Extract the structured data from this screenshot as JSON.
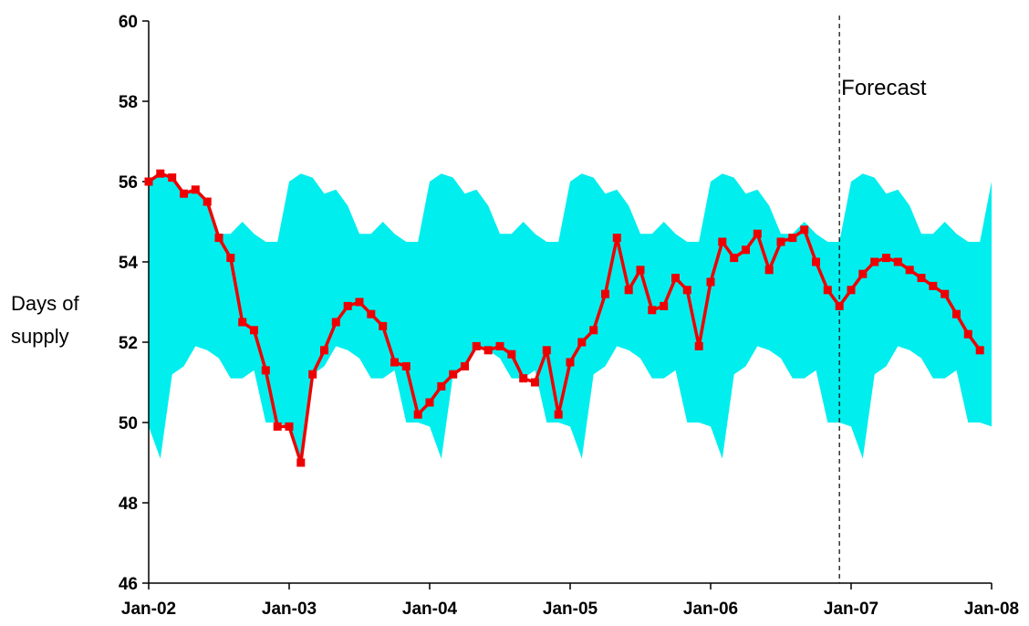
{
  "chart_data": {
    "type": "line",
    "ylabel_lines": [
      "Days of",
      "supply"
    ],
    "annotation": "Forecast",
    "forecast_x": "2006-12",
    "ylim": [
      46,
      60
    ],
    "yticks": [
      46,
      48,
      50,
      52,
      54,
      56,
      58,
      60
    ],
    "xlim": [
      "2002-01",
      "2008-01"
    ],
    "xticks": [
      {
        "x": "2002-01",
        "label": "Jan-02"
      },
      {
        "x": "2003-01",
        "label": "Jan-03"
      },
      {
        "x": "2004-01",
        "label": "Jan-04"
      },
      {
        "x": "2005-01",
        "label": "Jan-05"
      },
      {
        "x": "2006-01",
        "label": "Jan-06"
      },
      {
        "x": "2007-01",
        "label": "Jan-07"
      },
      {
        "x": "2008-01",
        "label": "Jan-08"
      }
    ],
    "band": {
      "color": "#00EEEE",
      "month_upper": [
        56.0,
        56.2,
        56.1,
        55.7,
        55.8,
        55.4,
        54.7,
        54.7,
        55.0,
        54.7,
        54.5,
        54.5
      ],
      "month_lower": [
        49.9,
        49.1,
        51.2,
        51.4,
        51.9,
        51.8,
        51.6,
        51.1,
        51.1,
        51.3,
        50.0,
        50.0
      ],
      "start": "2002-01",
      "end": "2008-01"
    },
    "series": [
      {
        "color": "#EE0000",
        "x": [
          "2002-01",
          "2002-02",
          "2002-03",
          "2002-04",
          "2002-05",
          "2002-06",
          "2002-07",
          "2002-08",
          "2002-09",
          "2002-10",
          "2002-11",
          "2002-12",
          "2003-01",
          "2003-02",
          "2003-03",
          "2003-04",
          "2003-05",
          "2003-06",
          "2003-07",
          "2003-08",
          "2003-09",
          "2003-10",
          "2003-11",
          "2003-12",
          "2004-01",
          "2004-02",
          "2004-03",
          "2004-04",
          "2004-05",
          "2004-06",
          "2004-07",
          "2004-08",
          "2004-09",
          "2004-10",
          "2004-11",
          "2004-12",
          "2005-01",
          "2005-02",
          "2005-03",
          "2005-04",
          "2005-05",
          "2005-06",
          "2005-07",
          "2005-08",
          "2005-09",
          "2005-10",
          "2005-11",
          "2005-12",
          "2006-01",
          "2006-02",
          "2006-03",
          "2006-04",
          "2006-05",
          "2006-06",
          "2006-07",
          "2006-08",
          "2006-09",
          "2006-10",
          "2006-11",
          "2006-12",
          "2007-01",
          "2007-02",
          "2007-03",
          "2007-04",
          "2007-05",
          "2007-06",
          "2007-07",
          "2007-08",
          "2007-09",
          "2007-10",
          "2007-11",
          "2007-12"
        ],
        "y": [
          56.0,
          56.2,
          56.1,
          55.7,
          55.8,
          55.5,
          54.6,
          54.1,
          52.5,
          52.3,
          51.3,
          49.9,
          49.9,
          49.0,
          51.2,
          51.8,
          52.5,
          52.9,
          53.0,
          52.7,
          52.4,
          51.5,
          51.4,
          50.2,
          50.5,
          50.9,
          51.2,
          51.4,
          51.9,
          51.8,
          51.9,
          51.7,
          51.1,
          51.0,
          51.8,
          50.2,
          51.5,
          52.0,
          52.3,
          53.2,
          54.6,
          53.3,
          53.8,
          52.8,
          52.9,
          53.6,
          53.3,
          51.9,
          53.5,
          54.5,
          54.1,
          54.3,
          54.7,
          53.8,
          54.5,
          54.6,
          54.8,
          54.0,
          53.3,
          52.9,
          53.3,
          53.7,
          54.0,
          54.1,
          54.0,
          53.8,
          53.6,
          53.4,
          53.2,
          52.7,
          52.2,
          51.8
        ]
      }
    ]
  }
}
